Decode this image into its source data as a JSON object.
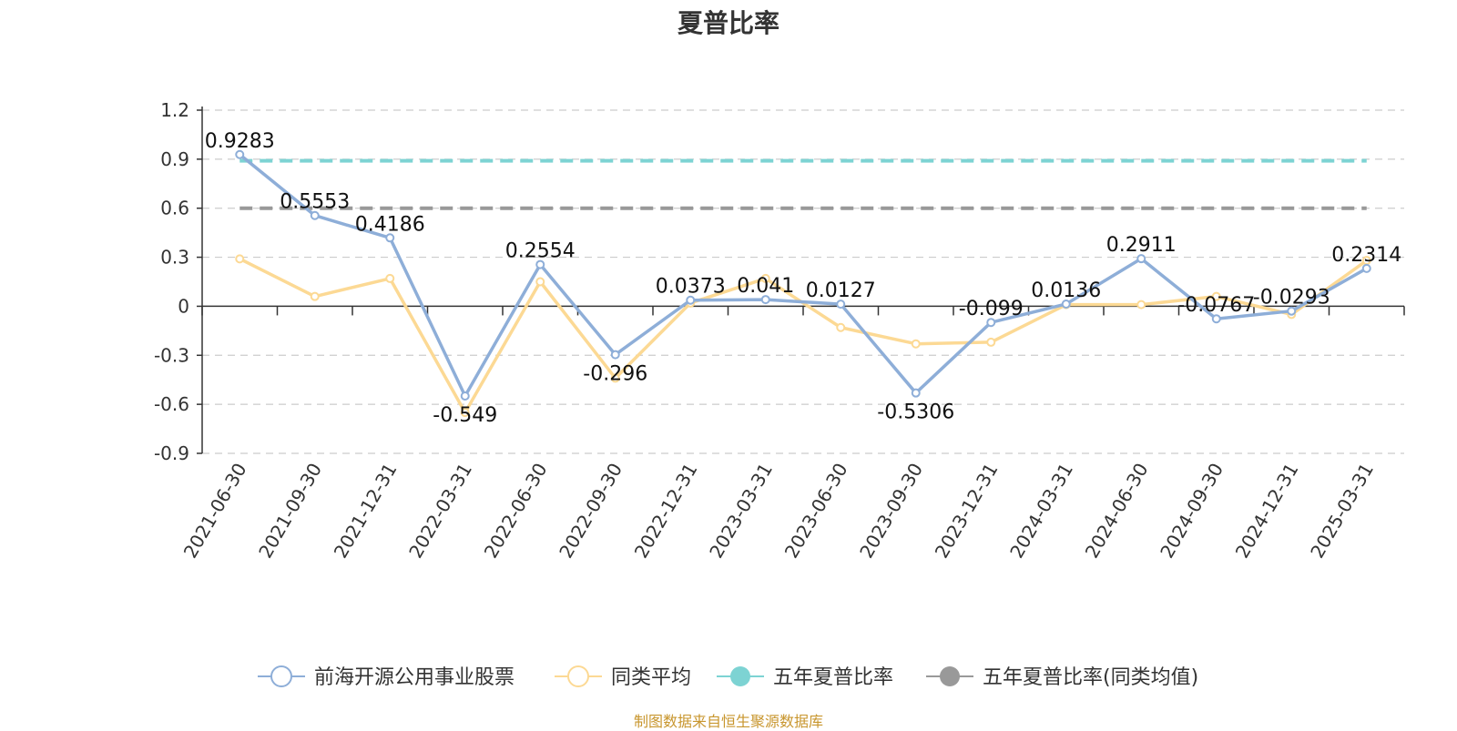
{
  "chart_data": {
    "type": "line",
    "title": "夏普比率",
    "categories": [
      "2021-06-30",
      "2021-09-30",
      "2021-12-31",
      "2022-03-31",
      "2022-06-30",
      "2022-09-30",
      "2022-12-31",
      "2023-03-31",
      "2023-06-30",
      "2023-09-30",
      "2023-12-31",
      "2024-03-31",
      "2024-06-30",
      "2024-09-30",
      "2024-12-31",
      "2025-03-31"
    ],
    "ylim": [
      -0.9,
      1.2
    ],
    "yticks": [
      1.2,
      0.9,
      0.6,
      0.3,
      0,
      -0.3,
      -0.6,
      -0.9
    ],
    "ytick_labels": [
      "1.2",
      "0.9",
      "0.6",
      "0.3",
      "0",
      "-0.3",
      "-0.6",
      "-0.9"
    ],
    "grid": "horizontal dashed",
    "legend_position": "bottom",
    "series": [
      {
        "name": "前海开源公用事业股票",
        "color": "#8eaed8",
        "marker": "hollow-circle",
        "values": [
          0.9283,
          0.5553,
          0.4186,
          -0.549,
          0.2554,
          -0.296,
          0.0373,
          0.041,
          0.0127,
          -0.5306,
          -0.099,
          0.0136,
          0.2911,
          -0.0767,
          -0.0293,
          0.2314
        ],
        "labels": [
          "0.9283",
          "0.5553",
          "0.4186",
          "-0.549",
          "0.2554",
          "-0.296",
          "0.0373",
          "0.041",
          "0.0127",
          "-0.5306",
          "-0.099",
          "0.0136",
          "0.2911",
          "-0.0767",
          "-0.0293",
          "0.2314"
        ]
      },
      {
        "name": "同类平均",
        "color": "#fcd994",
        "marker": "hollow-circle",
        "values": [
          0.29,
          0.06,
          0.17,
          -0.65,
          0.15,
          -0.44,
          0.02,
          0.17,
          -0.13,
          -0.23,
          -0.22,
          0.01,
          0.01,
          0.06,
          -0.05,
          0.28
        ]
      },
      {
        "name": "五年夏普比率",
        "color": "#7dd3d3",
        "marker": "filled-circle",
        "style": "dashed",
        "value": 0.89
      },
      {
        "name": "五年夏普比率(同类均值)",
        "color": "#999999",
        "marker": "filled-circle",
        "style": "dashed",
        "value": 0.6
      }
    ]
  },
  "footer": {
    "source": "制图数据来自恒生聚源数据库"
  }
}
